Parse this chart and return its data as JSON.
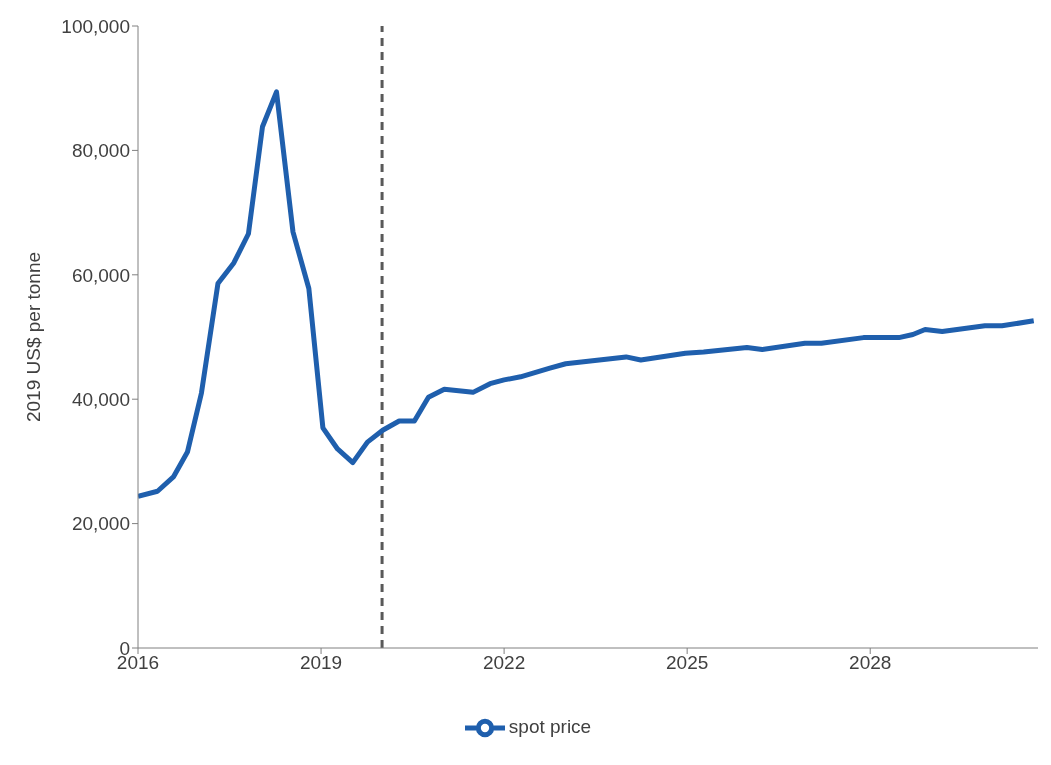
{
  "chart_data": {
    "type": "line",
    "ylabel": "2019 US$ per tonne",
    "x": [
      2016,
      2016.32,
      2016.58,
      2016.81,
      2017.04,
      2017.31,
      2017.57,
      2017.81,
      2018.04,
      2018.27,
      2018.54,
      2018.8,
      2019.03,
      2019.27,
      2019.52,
      2019.76,
      2020.01,
      2020.28,
      2020.53,
      2020.76,
      2021.02,
      2021.49,
      2021.77,
      2022,
      2022.27,
      2022.75,
      2023.01,
      2024,
      2024.24,
      2024.97,
      2025.27,
      2025.98,
      2026.23,
      2026.93,
      2027.2,
      2027.89,
      2028.22,
      2028.47,
      2028.7,
      2028.9,
      2029.18,
      2029.88,
      2030.16,
      2030.68
    ],
    "series": [
      {
        "name": "spot price",
        "color": "#1f5fad",
        "values": [
          24400,
          25200,
          27500,
          31500,
          41000,
          58600,
          61900,
          66600,
          83800,
          89400,
          66900,
          57800,
          35400,
          32000,
          29800,
          33100,
          35000,
          36500,
          36500,
          40300,
          41600,
          41100,
          42500,
          43100,
          43600,
          45000,
          45700,
          46800,
          46300,
          47400,
          47600,
          48300,
          48000,
          49000,
          49000,
          49900,
          49900,
          49900,
          50400,
          51200,
          50900,
          51800,
          51800,
          52600
        ]
      }
    ],
    "xlim": [
      2016,
      2030.75
    ],
    "xticks": [
      2016,
      2019,
      2022,
      2025,
      2028
    ],
    "ylim": [
      0,
      100000
    ],
    "yticks": [
      0,
      {
        "value": 20000,
        "label": "20,000"
      },
      {
        "value": 40000,
        "label": "40,000"
      },
      {
        "value": 60000,
        "label": "60,000"
      },
      {
        "value": 80000,
        "label": "80,000"
      },
      {
        "value": 100000,
        "label": "100,000"
      }
    ],
    "ref_lines": [
      {
        "axis": "x",
        "value": 2020,
        "color": "#595959",
        "line_style": "dashed"
      }
    ],
    "grid": false,
    "legend": "bottom",
    "marker": "none",
    "line_style": "solid"
  }
}
